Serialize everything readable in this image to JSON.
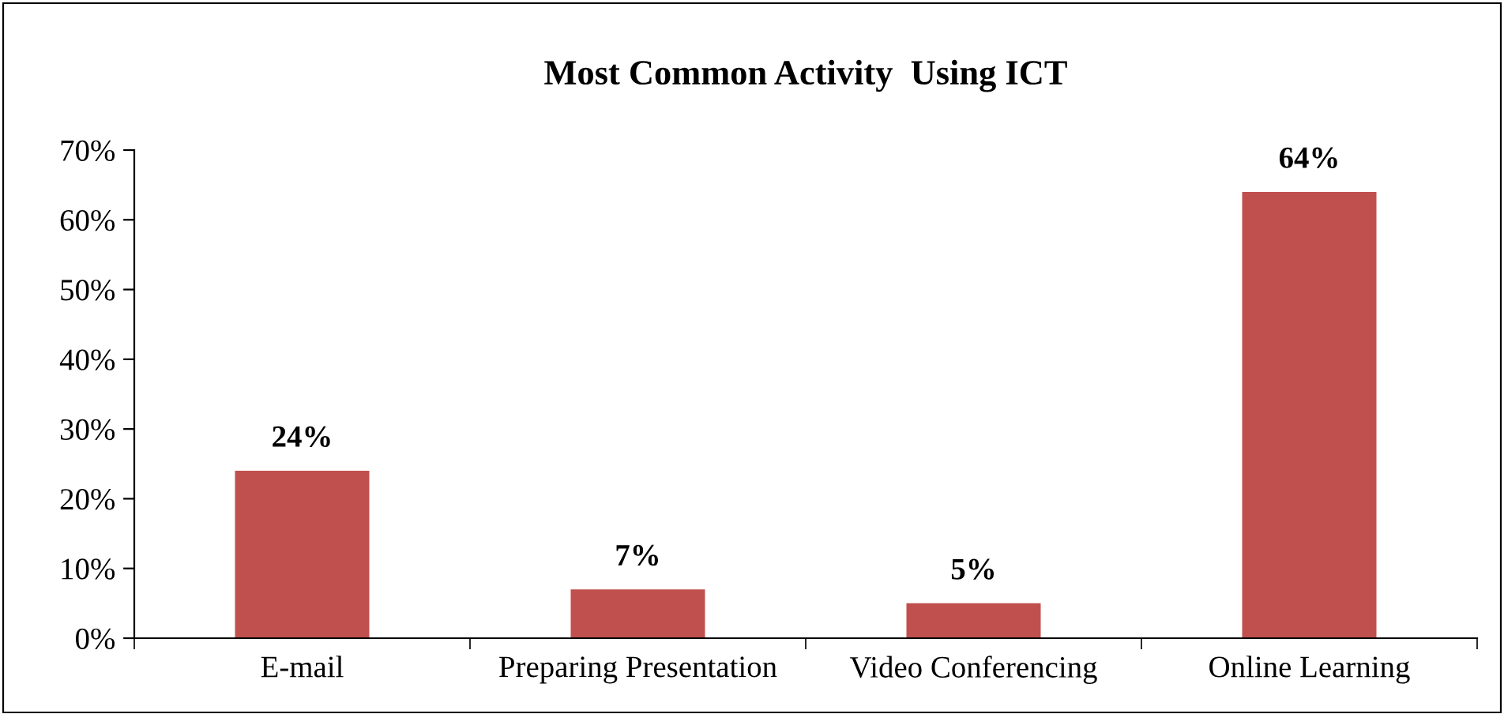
{
  "chart_data": {
    "type": "bar",
    "title": "Most Common Activity  Using ICT",
    "categories": [
      "E-mail",
      "Preparing Presentation",
      "Video Conferencing",
      "Online Learning"
    ],
    "values": [
      24,
      7,
      5,
      64
    ],
    "value_labels": [
      "24%",
      "7%",
      "5%",
      "64%"
    ],
    "color": "#c0504d",
    "ylim": [
      0,
      70
    ],
    "yticks": [
      {
        "value": 0,
        "label": "0%"
      },
      {
        "value": 10,
        "label": "10%"
      },
      {
        "value": 20,
        "label": "20%"
      },
      {
        "value": 30,
        "label": "30%"
      },
      {
        "value": 40,
        "label": "40%"
      },
      {
        "value": 50,
        "label": "50%"
      },
      {
        "value": 60,
        "label": "60%"
      },
      {
        "value": 70,
        "label": "70%"
      }
    ],
    "grid": false,
    "legend": false
  }
}
